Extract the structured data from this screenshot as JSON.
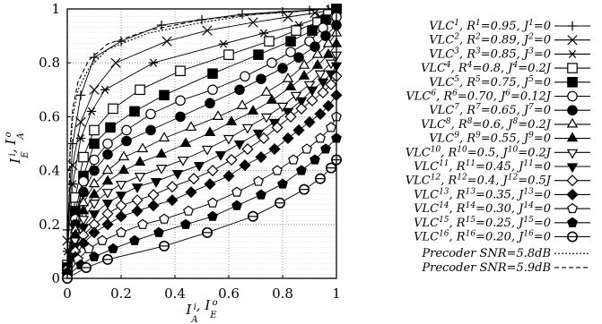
{
  "chart_data": {
    "type": "line",
    "xlabel": "I_A^i, I_E^o",
    "ylabel": "I_E^i, I_A^o",
    "xlim": [
      0,
      1
    ],
    "ylim": [
      0,
      1
    ],
    "x_ticks": [
      "0",
      "0.2",
      "0.4",
      "0.6",
      "0.8",
      "1"
    ],
    "y_ticks": [
      "0",
      "0.2",
      "0.4",
      "0.6",
      "0.8",
      "1"
    ],
    "grid": true,
    "legend_position": "right",
    "series": [
      {
        "name": "VLC^1, R^1=0.95, J^1=0",
        "marker": "plus",
        "x": [
          0.0,
          0.02,
          0.05,
          0.1,
          0.2,
          0.35,
          0.5,
          0.65,
          0.8,
          0.9,
          0.97,
          1.0
        ],
        "y": [
          0.18,
          0.5,
          0.68,
          0.82,
          0.88,
          0.94,
          0.96,
          0.98,
          0.99,
          0.995,
          1.0,
          1.0
        ]
      },
      {
        "name": "VLC^2, R^2=0.89, J^2=0",
        "marker": "x",
        "x": [
          0.0,
          0.02,
          0.05,
          0.1,
          0.18,
          0.37,
          0.52,
          0.69,
          0.82,
          0.92,
          0.98,
          1.0
        ],
        "y": [
          0.14,
          0.42,
          0.58,
          0.7,
          0.8,
          0.88,
          0.92,
          0.95,
          0.97,
          0.985,
          0.995,
          1.0
        ]
      },
      {
        "name": "VLC^3, R^3=0.85, J^3=0",
        "marker": "asterisk",
        "x": [
          0.0,
          0.02,
          0.05,
          0.09,
          0.14,
          0.32,
          0.58,
          0.73,
          0.86,
          0.94,
          0.985,
          1.0
        ],
        "y": [
          0.1,
          0.35,
          0.52,
          0.62,
          0.7,
          0.8,
          0.87,
          0.91,
          0.94,
          0.97,
          0.99,
          1.0
        ]
      },
      {
        "name": "VLC^4, R^4=0.8, J^4=0.2J",
        "marker": "square-open",
        "x": [
          0.0,
          0.03,
          0.06,
          0.1,
          0.17,
          0.27,
          0.42,
          0.6,
          0.75,
          0.85,
          0.93,
          0.97,
          1.0
        ],
        "y": [
          0.05,
          0.3,
          0.45,
          0.55,
          0.63,
          0.7,
          0.77,
          0.83,
          0.88,
          0.92,
          0.95,
          0.98,
          1.0
        ]
      },
      {
        "name": "VLC^5, R^5=0.75, J^5=0",
        "marker": "square-filled",
        "x": [
          0.0,
          0.03,
          0.06,
          0.1,
          0.16,
          0.25,
          0.36,
          0.54,
          0.71,
          0.83,
          0.91,
          0.96,
          1.0
        ],
        "y": [
          0.04,
          0.25,
          0.38,
          0.5,
          0.56,
          0.62,
          0.68,
          0.76,
          0.83,
          0.88,
          0.92,
          0.96,
          1.0
        ]
      },
      {
        "name": "VLC^6, R^6=0.70, J^6=0.12J",
        "marker": "circle-open",
        "x": [
          0.0,
          0.03,
          0.06,
          0.1,
          0.15,
          0.22,
          0.31,
          0.42,
          0.54,
          0.66,
          0.76,
          0.83,
          0.9,
          0.95,
          1.0
        ],
        "y": [
          0.03,
          0.22,
          0.36,
          0.44,
          0.5,
          0.55,
          0.61,
          0.66,
          0.7,
          0.75,
          0.8,
          0.84,
          0.88,
          0.93,
          0.97
        ]
      },
      {
        "name": "VLC^7, R^7=0.65, J^7=0",
        "marker": "circle-filled",
        "x": [
          0.0,
          0.03,
          0.06,
          0.1,
          0.15,
          0.22,
          0.31,
          0.42,
          0.53,
          0.64,
          0.72,
          0.8,
          0.86,
          0.92,
          0.96,
          1.0
        ],
        "y": [
          0.02,
          0.2,
          0.32,
          0.4,
          0.46,
          0.51,
          0.55,
          0.6,
          0.65,
          0.7,
          0.74,
          0.78,
          0.82,
          0.86,
          0.9,
          0.94
        ]
      },
      {
        "name": "VLC^8, R^8=0.6, J^8=0.2J",
        "marker": "triangle-up-open",
        "x": [
          0.0,
          0.03,
          0.06,
          0.1,
          0.15,
          0.21,
          0.28,
          0.36,
          0.46,
          0.56,
          0.65,
          0.74,
          0.82,
          0.88,
          0.93,
          0.97,
          1.0
        ],
        "y": [
          0.02,
          0.18,
          0.28,
          0.35,
          0.4,
          0.45,
          0.48,
          0.52,
          0.56,
          0.6,
          0.64,
          0.69,
          0.74,
          0.79,
          0.83,
          0.87,
          0.91
        ]
      },
      {
        "name": "VLC^9, R^9=0.55, J^9=0",
        "marker": "triangle-up-filled",
        "x": [
          0.0,
          0.03,
          0.06,
          0.1,
          0.15,
          0.21,
          0.27,
          0.35,
          0.44,
          0.53,
          0.61,
          0.69,
          0.76,
          0.83,
          0.88,
          0.93,
          0.97,
          1.0
        ],
        "y": [
          0.02,
          0.16,
          0.25,
          0.31,
          0.36,
          0.4,
          0.43,
          0.46,
          0.5,
          0.54,
          0.58,
          0.62,
          0.66,
          0.71,
          0.75,
          0.79,
          0.83,
          0.87
        ]
      },
      {
        "name": "VLC^10, R^10=0.5, J^10=0.2J",
        "marker": "triangle-down-open",
        "x": [
          0.0,
          0.03,
          0.06,
          0.1,
          0.15,
          0.2,
          0.27,
          0.35,
          0.43,
          0.52,
          0.6,
          0.67,
          0.74,
          0.8,
          0.85,
          0.9,
          0.94,
          0.98,
          1.0
        ],
        "y": [
          0.02,
          0.14,
          0.22,
          0.28,
          0.32,
          0.35,
          0.38,
          0.41,
          0.44,
          0.48,
          0.52,
          0.56,
          0.6,
          0.64,
          0.68,
          0.72,
          0.76,
          0.8,
          0.83
        ]
      },
      {
        "name": "VLC^11, R^11=0.45, J^11=0",
        "marker": "triangle-down-filled",
        "x": [
          0.0,
          0.03,
          0.06,
          0.1,
          0.15,
          0.2,
          0.26,
          0.33,
          0.41,
          0.49,
          0.57,
          0.64,
          0.71,
          0.77,
          0.82,
          0.87,
          0.91,
          0.95,
          0.98,
          1.0
        ],
        "y": [
          0.02,
          0.12,
          0.19,
          0.24,
          0.28,
          0.31,
          0.34,
          0.36,
          0.39,
          0.42,
          0.46,
          0.5,
          0.54,
          0.58,
          0.62,
          0.66,
          0.7,
          0.73,
          0.76,
          0.79
        ]
      },
      {
        "name": "VLC^12, R^12=0.4, J^12=0.5J",
        "marker": "diamond-open",
        "x": [
          0.0,
          0.03,
          0.06,
          0.1,
          0.15,
          0.2,
          0.26,
          0.32,
          0.39,
          0.47,
          0.54,
          0.61,
          0.67,
          0.73,
          0.78,
          0.83,
          0.87,
          0.91,
          0.95,
          0.98,
          1.0
        ],
        "y": [
          0.02,
          0.1,
          0.16,
          0.2,
          0.24,
          0.27,
          0.29,
          0.31,
          0.34,
          0.37,
          0.4,
          0.44,
          0.48,
          0.52,
          0.56,
          0.6,
          0.63,
          0.66,
          0.69,
          0.72,
          0.75
        ]
      },
      {
        "name": "VLC^13, R^13=0.35, J^13=0",
        "marker": "diamond-filled",
        "x": [
          0.0,
          0.03,
          0.06,
          0.1,
          0.15,
          0.2,
          0.26,
          0.32,
          0.39,
          0.46,
          0.53,
          0.6,
          0.66,
          0.72,
          0.77,
          0.82,
          0.86,
          0.9,
          0.94,
          0.97,
          1.0
        ],
        "y": [
          0.02,
          0.08,
          0.13,
          0.17,
          0.2,
          0.23,
          0.25,
          0.27,
          0.29,
          0.32,
          0.35,
          0.38,
          0.42,
          0.45,
          0.48,
          0.52,
          0.55,
          0.58,
          0.61,
          0.64,
          0.68
        ]
      },
      {
        "name": "VLC^14, R^14=0.30, J^14=0",
        "marker": "pentagon-open",
        "x": [
          0.0,
          0.04,
          0.08,
          0.13,
          0.2,
          0.28,
          0.36,
          0.45,
          0.54,
          0.63,
          0.71,
          0.78,
          0.84,
          0.89,
          0.94,
          0.98,
          1.0
        ],
        "y": [
          0.01,
          0.07,
          0.11,
          0.14,
          0.17,
          0.2,
          0.22,
          0.25,
          0.28,
          0.32,
          0.36,
          0.4,
          0.44,
          0.48,
          0.52,
          0.56,
          0.6
        ]
      },
      {
        "name": "VLC^15, R^15=0.25, J^15=0",
        "marker": "pentagon-filled",
        "x": [
          0.0,
          0.05,
          0.1,
          0.17,
          0.25,
          0.34,
          0.44,
          0.54,
          0.63,
          0.72,
          0.8,
          0.87,
          0.92,
          0.96,
          1.0
        ],
        "y": [
          0.01,
          0.05,
          0.08,
          0.11,
          0.14,
          0.17,
          0.2,
          0.23,
          0.27,
          0.31,
          0.35,
          0.4,
          0.44,
          0.48,
          0.52
        ]
      },
      {
        "name": "VLC^16, R^16=0.20, J^16=0",
        "marker": "circle-bar",
        "x": [
          0.0,
          0.07,
          0.15,
          0.36,
          0.52,
          0.69,
          0.79,
          0.88,
          0.94,
          0.98,
          1.0
        ],
        "y": [
          0.0,
          0.04,
          0.07,
          0.12,
          0.17,
          0.23,
          0.28,
          0.33,
          0.37,
          0.41,
          0.44
        ]
      },
      {
        "name": "Precoder SNR=5.8dB",
        "marker": "none",
        "dash": "dotted",
        "x": [
          0.0,
          0.005,
          0.01,
          0.02,
          0.04,
          0.08,
          0.15,
          0.3,
          0.5,
          0.7,
          0.85,
          0.95,
          1.0
        ],
        "y": [
          0.0,
          0.2,
          0.45,
          0.6,
          0.7,
          0.78,
          0.85,
          0.91,
          0.95,
          0.98,
          0.99,
          1.0,
          1.0
        ]
      },
      {
        "name": "Precoder SNR=5.9dB",
        "marker": "none",
        "dash": "dashed",
        "x": [
          0.0,
          0.005,
          0.01,
          0.02,
          0.04,
          0.08,
          0.15,
          0.3,
          0.5,
          0.7,
          0.85,
          0.95,
          1.0
        ],
        "y": [
          0.0,
          0.22,
          0.48,
          0.63,
          0.73,
          0.81,
          0.87,
          0.92,
          0.96,
          0.98,
          0.99,
          1.0,
          1.0
        ]
      }
    ]
  }
}
